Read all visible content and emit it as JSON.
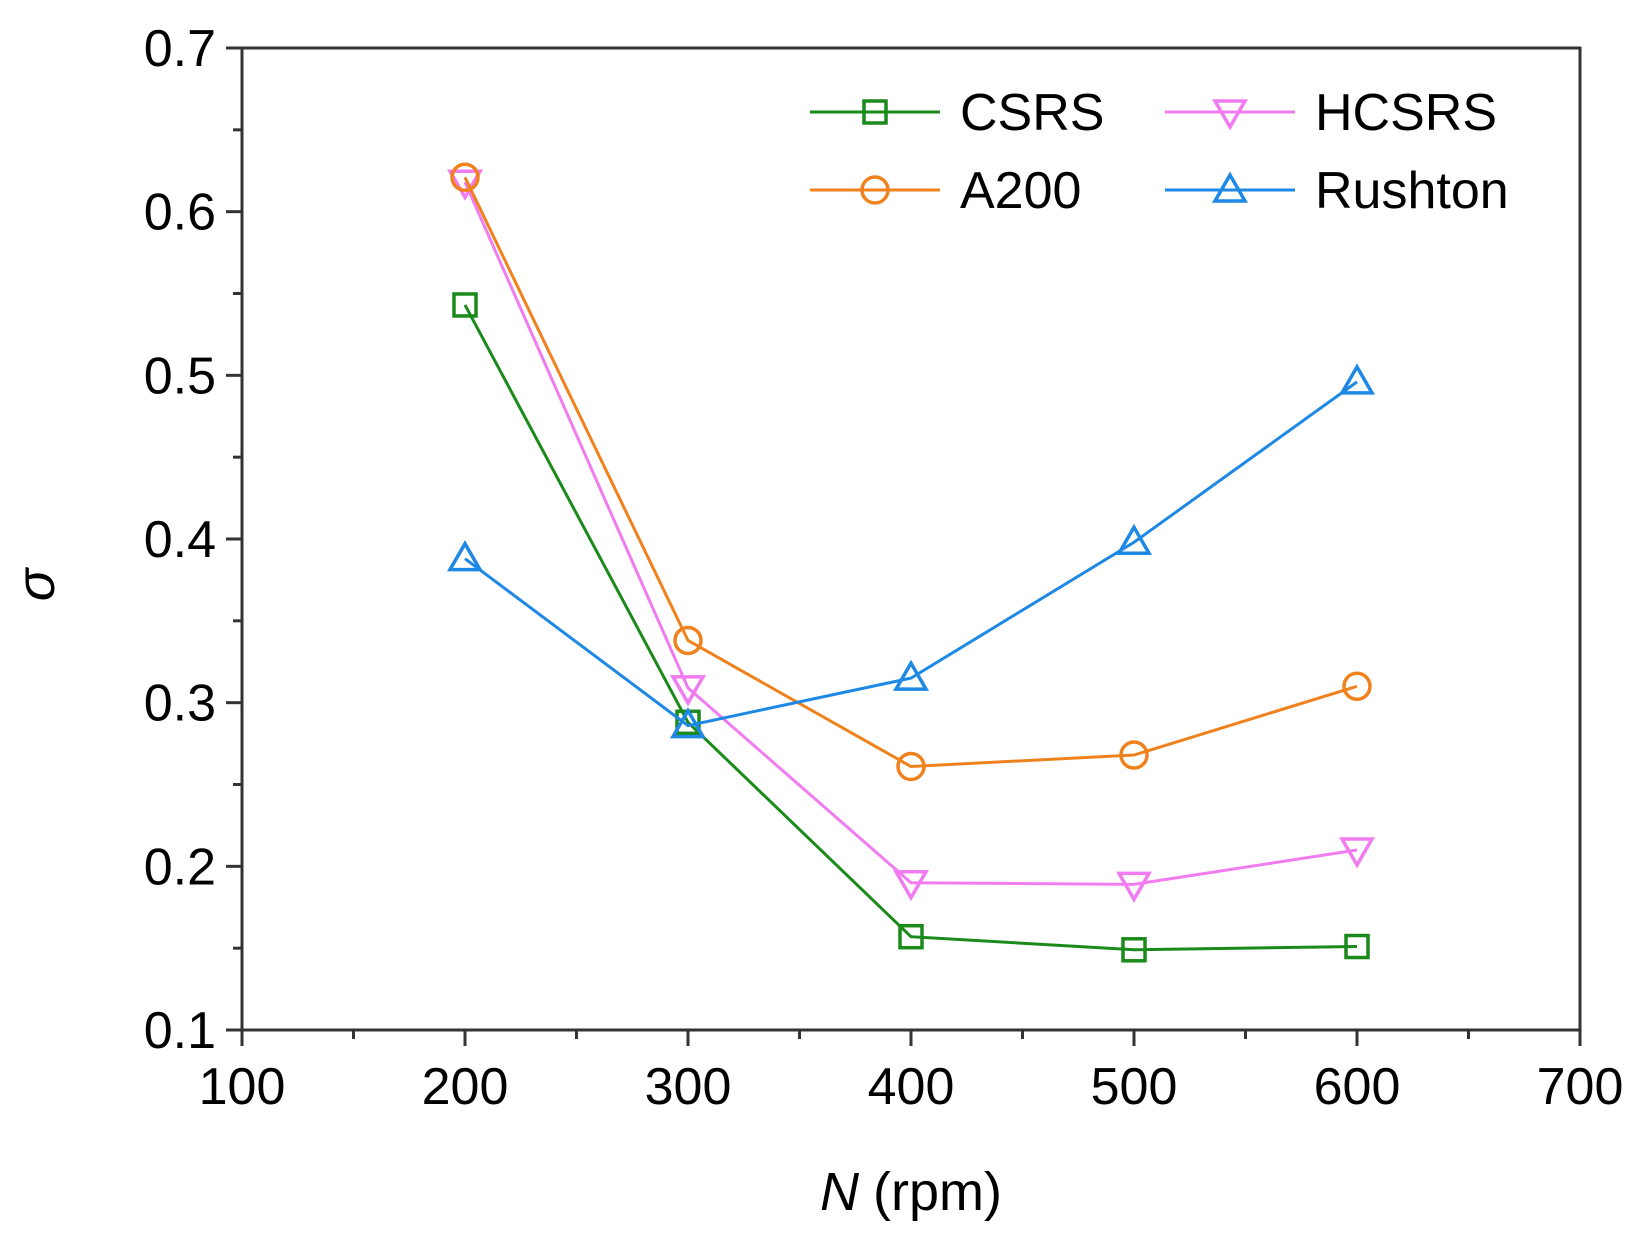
{
  "chart_data": {
    "type": "line",
    "title": "",
    "xlabel_var": "N",
    "xlabel_unit": "(rpm)",
    "ylabel": "σ",
    "xlim": [
      100,
      700
    ],
    "ylim": [
      0.1,
      0.7
    ],
    "x_ticks": [
      "100",
      "200",
      "300",
      "400",
      "500",
      "600",
      "700"
    ],
    "y_ticks": [
      "0.1",
      "0.2",
      "0.3",
      "0.4",
      "0.5",
      "0.6",
      "0.7"
    ],
    "x_tick_values": [
      100,
      200,
      300,
      400,
      500,
      600,
      700
    ],
    "y_tick_values": [
      0.1,
      0.2,
      0.3,
      0.4,
      0.5,
      0.6,
      0.7
    ],
    "x_minor_step": 50,
    "y_minor_step": 0.05,
    "grid": false,
    "legend_position": "top-right",
    "x": [
      200,
      300,
      400,
      500,
      600
    ],
    "series": [
      {
        "name": "CSRS",
        "values": [
          0.543,
          0.288,
          0.157,
          0.149,
          0.151
        ],
        "color": "#1a8a1a",
        "marker": "square"
      },
      {
        "name": "HCSRS",
        "values": [
          0.618,
          0.309,
          0.19,
          0.189,
          0.21
        ],
        "color": "#f07cf0",
        "marker": "triangle-down"
      },
      {
        "name": "A200",
        "values": [
          0.621,
          0.338,
          0.261,
          0.268,
          0.31
        ],
        "color": "#f0821e",
        "marker": "circle"
      },
      {
        "name": "Rushton",
        "values": [
          0.388,
          0.286,
          0.315,
          0.398,
          0.496
        ],
        "color": "#1e88e5",
        "marker": "triangle-up"
      }
    ]
  }
}
